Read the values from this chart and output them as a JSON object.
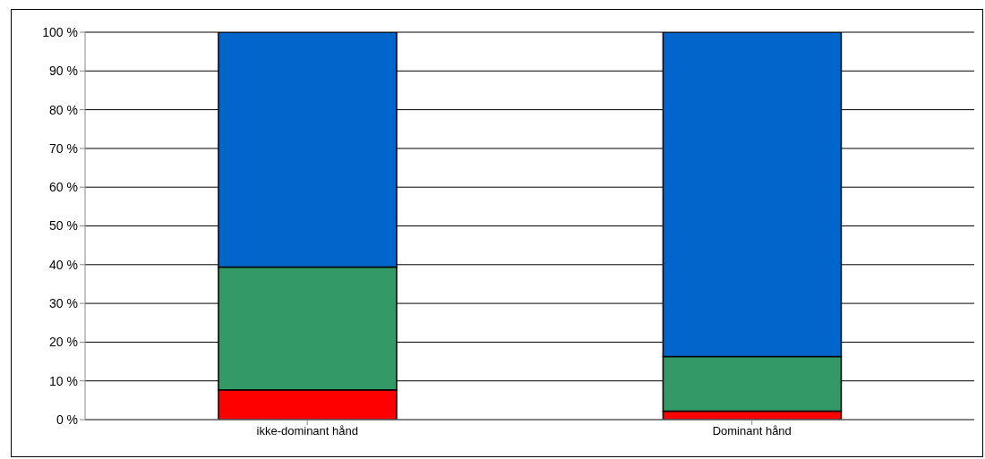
{
  "chart_data": {
    "type": "bar",
    "stacked": true,
    "categories": [
      "ikke-dominant hånd",
      "Dominant hånd"
    ],
    "series": [
      {
        "color": "#ff0000",
        "values": [
          7.7,
          2.2
        ]
      },
      {
        "color": "#339966",
        "values": [
          31.7,
          14.1
        ]
      },
      {
        "color": "#0066cc",
        "values": [
          60.6,
          83.7
        ]
      }
    ],
    "ylim": [
      0,
      100
    ],
    "yticks": [
      {
        "value": 0,
        "label": "0 %"
      },
      {
        "value": 10,
        "label": "10 %"
      },
      {
        "value": 20,
        "label": "20 %"
      },
      {
        "value": 30,
        "label": "30 %"
      },
      {
        "value": 40,
        "label": "40 %"
      },
      {
        "value": 50,
        "label": "50 %"
      },
      {
        "value": 60,
        "label": "60 %"
      },
      {
        "value": 70,
        "label": "70 %"
      },
      {
        "value": 80,
        "label": "80 %"
      },
      {
        "value": 90,
        "label": "90 %"
      },
      {
        "value": 100,
        "label": "100 %"
      }
    ],
    "grid": "y",
    "legend": false
  }
}
